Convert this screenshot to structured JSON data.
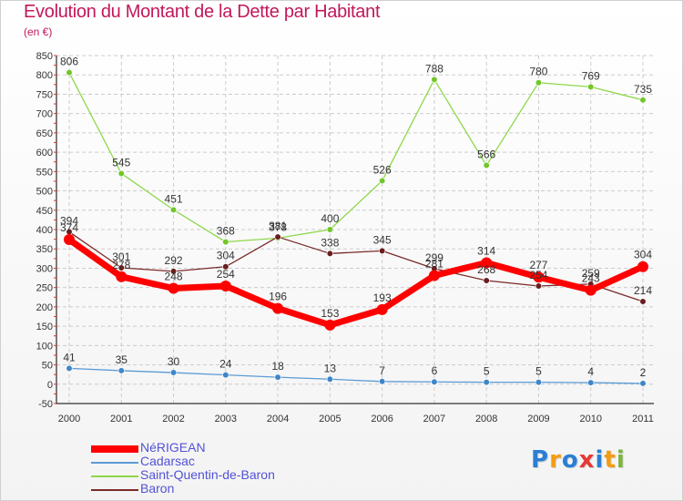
{
  "chart_data": {
    "type": "line",
    "title": "Evolution du Montant de la Dette par Habitant",
    "subtitle": "(en €)",
    "categories": [
      "2000",
      "2001",
      "2002",
      "2003",
      "2004",
      "2005",
      "2006",
      "2007",
      "2008",
      "2009",
      "2010",
      "2011"
    ],
    "ylim": [
      -50,
      850
    ],
    "yticks": [
      -50,
      0,
      50,
      100,
      150,
      200,
      250,
      300,
      350,
      400,
      450,
      500,
      550,
      600,
      650,
      700,
      750,
      800,
      850
    ],
    "grid": true,
    "legend_position": "bottom-left",
    "series": [
      {
        "name": "Saint-Quentin-de-Baron",
        "color": "#8ed84a",
        "marker": "#72c62a",
        "width": 1.3,
        "values": [
          806,
          545,
          451,
          368,
          378,
          400,
          526,
          788,
          566,
          780,
          769,
          735
        ]
      },
      {
        "name": "Baron",
        "color": "#7a2a2a",
        "marker": "#6a1e1e",
        "width": 1.3,
        "values": [
          394,
          301,
          292,
          304,
          381,
          338,
          345,
          299,
          268,
          254,
          259,
          214
        ]
      },
      {
        "name": "Cadarsac",
        "color": "#5b9bd5",
        "marker": "#3f86c9",
        "width": 1.3,
        "values": [
          41,
          35,
          30,
          24,
          18,
          13,
          7,
          6,
          5,
          5,
          4,
          2
        ]
      },
      {
        "name": "NéRIGEAN",
        "color": "#ff0000",
        "marker": "#ff0000",
        "width": 7,
        "values": [
          374,
          278,
          248,
          254,
          196,
          153,
          193,
          281,
          314,
          277,
          243,
          304
        ]
      }
    ],
    "legend_order": [
      "NéRIGEAN",
      "Cadarsac",
      "Saint-Quentin-de-Baron",
      "Baron"
    ]
  },
  "logo": {
    "letters": [
      "P",
      "r",
      "o",
      "x",
      "i",
      "t",
      "i"
    ],
    "colors": [
      "#2a7fd4",
      "#f39c12",
      "#2a7fd4",
      "#e53935",
      "#2a7fd4",
      "#f39c12",
      "#7cb342"
    ]
  }
}
